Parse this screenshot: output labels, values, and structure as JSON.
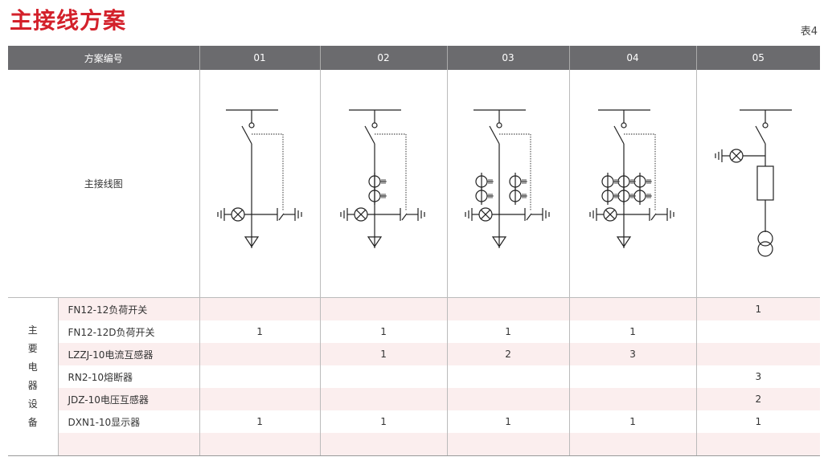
{
  "title": "主接线方案",
  "table_no": "表4",
  "header": {
    "label": "方案编号",
    "schemes": [
      "01",
      "02",
      "03",
      "04",
      "05"
    ]
  },
  "diagram_label": "主接线图",
  "diagrams": [
    {
      "type": "load-switch-earth-switch",
      "ct_sets": 0
    },
    {
      "type": "load-switch-earth-switch",
      "ct_sets": 1
    },
    {
      "type": "load-switch-earth-switch",
      "ct_sets": 2
    },
    {
      "type": "load-switch-earth-switch",
      "ct_sets": 3
    },
    {
      "type": "load-switch-fuse-pt",
      "ct_sets": 0
    }
  ],
  "equipment_group": [
    "主",
    "要",
    "电",
    "器",
    "设",
    "备"
  ],
  "equipment": [
    {
      "name": "FN12-12负荷开关",
      "values": [
        "",
        "",
        "",
        "",
        "1"
      ]
    },
    {
      "name": "FN12-12D负荷开关",
      "values": [
        "1",
        "1",
        "1",
        "1",
        ""
      ]
    },
    {
      "name": "LZZJ-10电流互感器",
      "values": [
        "",
        "1",
        "2",
        "3",
        ""
      ]
    },
    {
      "name": "RN2-10熔断器",
      "values": [
        "",
        "",
        "",
        "",
        "3"
      ]
    },
    {
      "name": "JDZ-10电压互感器",
      "values": [
        "",
        "",
        "",
        "",
        "2"
      ]
    },
    {
      "name": "DXN1-10显示器",
      "values": [
        "1",
        "1",
        "1",
        "1",
        "1"
      ]
    },
    {
      "name": "",
      "values": [
        "",
        "",
        "",
        "",
        ""
      ]
    }
  ],
  "colors": {
    "title": "#d3212b",
    "header_bg": "#6b6b6e",
    "row_alt": "#fbeeee"
  }
}
